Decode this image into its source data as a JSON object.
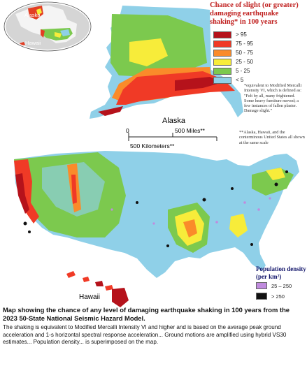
{
  "legend": {
    "title": "Chance of slight (or greater) damaging earthquake shaking* in 100 years",
    "items": [
      {
        "label": "> 95",
        "color": "#b5121b"
      },
      {
        "label": "75 - 95",
        "color": "#f03a26"
      },
      {
        "label": "50 - 75",
        "color": "#fa8b2a"
      },
      {
        "label": "25 - 50",
        "color": "#f7ec3a"
      },
      {
        "label": "5 - 25",
        "color": "#7cc94e"
      },
      {
        "label": "< 5",
        "color": "#8fd0e8"
      }
    ]
  },
  "notes": {
    "intensity": "*equivalent to Modified Mercalli Intensity VI, which is defined as: \"Felt by all, many frightened. Some heavy furniture moved; a few instances of fallen plaster. Damage slight.\"",
    "scale": "**Alaska, Hawaii, and the conterminous United States all shown at the same scale"
  },
  "labels": {
    "alaska": "Alaska",
    "hawaii": "Hawaii",
    "inset_alaska": "Alaska",
    "inset_hawaii": "Hawaii"
  },
  "scale_bar": {
    "miles_label": "500 Miles**",
    "km_label": "500 Kilometers**",
    "zero": "0"
  },
  "population_legend": {
    "title": "Population density",
    "unit": "(per km²)",
    "items": [
      {
        "label": "25 – 250",
        "color": "#c08bde"
      },
      {
        "label": "> 250",
        "color": "#111111"
      }
    ]
  },
  "caption": {
    "title": "Map showing the chance of any level of damaging earthquake shaking in 100 years from the 2023 50-State National Seismic Hazard Model.",
    "body": "The shaking is equivalent to Modified Mercalli Intensity VI and higher and is based on the average peak ground acceleration and 1-s horizontal spectral response acceleration... Ground motions are amplified using hybrid VS30 estimates... Population density... is superimposed on the map."
  }
}
